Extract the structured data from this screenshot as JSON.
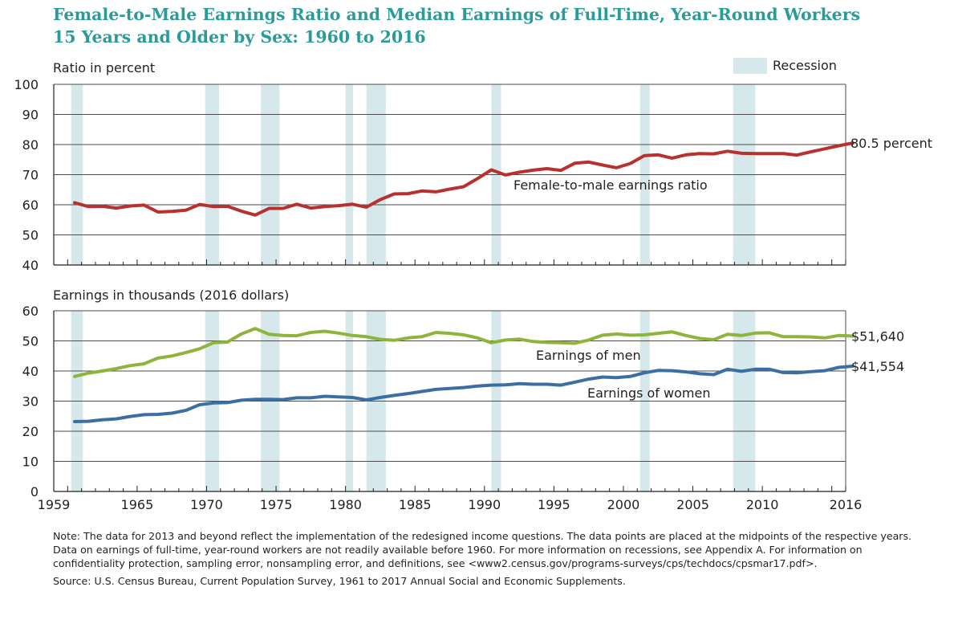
{
  "title_line1": "Female-to-Male Earnings Ratio and Median Earnings of Full-Time, Year-Round Workers",
  "title_line2": "15 Years and Older by Sex: 1960 to 2016",
  "legend_recession": "Recession",
  "colors": {
    "ratio": "#b8312f",
    "men": "#8db53c",
    "women": "#3a6ea5",
    "recession": "#d6e8ec",
    "title": "#2a9a9a"
  },
  "chart_data": [
    {
      "type": "line",
      "ylabel": "Ratio in percent",
      "ylim": [
        40,
        100
      ],
      "yticks": [
        "40",
        "50",
        "60",
        "70",
        "80",
        "90",
        "100"
      ],
      "xlim": [
        1959,
        2016
      ],
      "recessions": [
        [
          1960.25,
          1961.1
        ],
        [
          1969.9,
          1970.9
        ],
        [
          1973.9,
          1975.25
        ],
        [
          1980.0,
          1980.55
        ],
        [
          1981.5,
          1982.9
        ],
        [
          1990.5,
          1991.2
        ],
        [
          2001.2,
          2001.9
        ],
        [
          2007.9,
          2009.5
        ]
      ],
      "series": [
        {
          "name": "Female-to-male earnings ratio",
          "end_label": "80.5 percent",
          "x": [
            1960,
            1961,
            1962,
            1963,
            1964,
            1965,
            1966,
            1967,
            1968,
            1969,
            1970,
            1971,
            1972,
            1973,
            1974,
            1975,
            1976,
            1977,
            1978,
            1979,
            1980,
            1981,
            1982,
            1983,
            1984,
            1985,
            1986,
            1987,
            1988,
            1989,
            1990,
            1991,
            1992,
            1993,
            1994,
            1995,
            1996,
            1997,
            1998,
            1999,
            2000,
            2001,
            2002,
            2003,
            2004,
            2005,
            2006,
            2007,
            2008,
            2009,
            2010,
            2011,
            2012,
            2013,
            2014,
            2015,
            2016
          ],
          "values": [
            60.7,
            59.4,
            59.5,
            58.9,
            59.6,
            59.9,
            57.6,
            57.8,
            58.2,
            60.1,
            59.4,
            59.5,
            57.9,
            56.6,
            58.8,
            58.8,
            60.2,
            58.9,
            59.4,
            59.7,
            60.2,
            59.2,
            61.7,
            63.6,
            63.7,
            64.6,
            64.3,
            65.2,
            66.0,
            68.7,
            71.6,
            69.9,
            70.8,
            71.5,
            72.0,
            71.4,
            73.8,
            74.2,
            73.2,
            72.3,
            73.7,
            76.3,
            76.6,
            75.5,
            76.6,
            77.0,
            76.9,
            77.8,
            77.1,
            77.0,
            77.0,
            77.0,
            76.5,
            77.6,
            78.6,
            79.6,
            80.5
          ]
        }
      ]
    },
    {
      "type": "line",
      "ylabel": "Earnings in thousands (2016 dollars)",
      "ylim": [
        0,
        60
      ],
      "yticks": [
        "0",
        "10",
        "20",
        "30",
        "40",
        "50",
        "60"
      ],
      "xlim": [
        1959,
        2016
      ],
      "xticks": [
        "1959",
        "1965",
        "1970",
        "1975",
        "1980",
        "1985",
        "1990",
        "1995",
        "2000",
        "2005",
        "2010",
        "2016"
      ],
      "recessions": [
        [
          1960.25,
          1961.1
        ],
        [
          1969.9,
          1970.9
        ],
        [
          1973.9,
          1975.25
        ],
        [
          1980.0,
          1980.55
        ],
        [
          1981.5,
          1982.9
        ],
        [
          1990.5,
          1991.2
        ],
        [
          2001.2,
          2001.9
        ],
        [
          2007.9,
          2009.5
        ]
      ],
      "series": [
        {
          "name": "Earnings of men",
          "end_label": "$51,640",
          "x": [
            1960,
            1961,
            1962,
            1963,
            1964,
            1965,
            1966,
            1967,
            1968,
            1969,
            1970,
            1971,
            1972,
            1973,
            1974,
            1975,
            1976,
            1977,
            1978,
            1979,
            1980,
            1981,
            1982,
            1983,
            1984,
            1985,
            1986,
            1987,
            1988,
            1989,
            1990,
            1991,
            1992,
            1993,
            1994,
            1995,
            1996,
            1997,
            1998,
            1999,
            2000,
            2001,
            2002,
            2003,
            2004,
            2005,
            2006,
            2007,
            2008,
            2009,
            2010,
            2011,
            2012,
            2013,
            2014,
            2015,
            2016
          ],
          "values": [
            38.2,
            39.3,
            40.0,
            40.8,
            41.8,
            42.4,
            44.3,
            45.0,
            46.1,
            47.4,
            49.4,
            49.6,
            52.3,
            54.1,
            52.2,
            51.8,
            51.7,
            52.8,
            53.2,
            52.6,
            51.8,
            51.4,
            50.5,
            50.2,
            51.0,
            51.4,
            52.8,
            52.5,
            52.0,
            51.0,
            49.4,
            50.3,
            50.6,
            49.8,
            49.5,
            49.4,
            49.2,
            50.3,
            51.9,
            52.3,
            51.9,
            52.0,
            52.5,
            53.0,
            51.8,
            50.8,
            50.4,
            52.2,
            51.8,
            52.6,
            52.7,
            51.4,
            51.4,
            51.3,
            51.0,
            51.8,
            51.6
          ]
        },
        {
          "name": "Earnings of women",
          "end_label": "$41,554",
          "x": [
            1960,
            1961,
            1962,
            1963,
            1964,
            1965,
            1966,
            1967,
            1968,
            1969,
            1970,
            1971,
            1972,
            1973,
            1974,
            1975,
            1976,
            1977,
            1978,
            1979,
            1980,
            1981,
            1982,
            1983,
            1984,
            1985,
            1986,
            1987,
            1988,
            1989,
            1990,
            1991,
            1992,
            1993,
            1994,
            1995,
            1996,
            1997,
            1998,
            1999,
            2000,
            2001,
            2002,
            2003,
            2004,
            2005,
            2006,
            2007,
            2008,
            2009,
            2010,
            2011,
            2012,
            2013,
            2014,
            2015,
            2016
          ],
          "values": [
            23.2,
            23.3,
            23.8,
            24.1,
            24.9,
            25.5,
            25.6,
            26.0,
            26.9,
            28.8,
            29.4,
            29.5,
            30.3,
            30.6,
            30.6,
            30.5,
            31.1,
            31.1,
            31.6,
            31.4,
            31.2,
            30.4,
            31.2,
            31.9,
            32.5,
            33.2,
            33.9,
            34.2,
            34.5,
            35.0,
            35.3,
            35.4,
            35.8,
            35.6,
            35.6,
            35.3,
            36.3,
            37.3,
            38.0,
            37.8,
            38.2,
            39.4,
            40.2,
            40.1,
            39.7,
            39.1,
            38.8,
            40.6,
            39.9,
            40.6,
            40.6,
            39.5,
            39.4,
            39.8,
            40.1,
            41.2,
            41.6
          ]
        }
      ]
    }
  ],
  "notes": {
    "note": "Note: The data for 2013 and beyond reflect the implementation of the redesigned income questions. The data points are placed at the midpoints of the respective years. Data on earnings of full-time, year-round workers are not readily available before 1960. For more information on recessions, see Appendix A. For information on confidentiality protection, sampling error, nonsampling error, and definitions, see <www2.census.gov/programs-surveys/cps/techdocs/cpsmar17.pdf>.",
    "source": "Source: U.S. Census Bureau, Current Population Survey, 1961 to 2017 Annual Social and Economic Supplements."
  }
}
